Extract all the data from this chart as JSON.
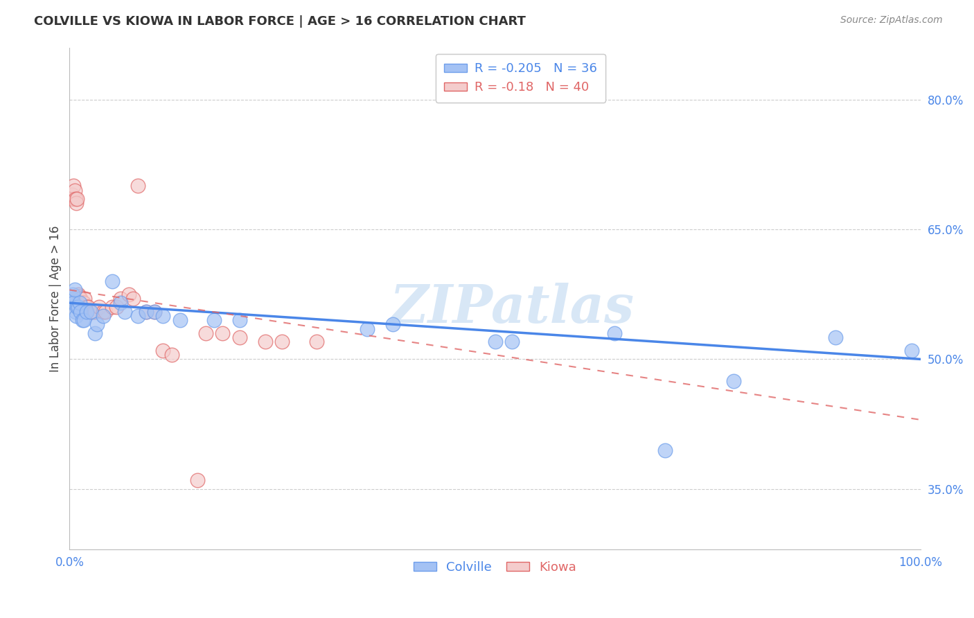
{
  "title": "COLVILLE VS KIOWA IN LABOR FORCE | AGE > 16 CORRELATION CHART",
  "source": "Source: ZipAtlas.com",
  "ylabel": "In Labor Force | Age > 16",
  "xlim": [
    0.0,
    1.0
  ],
  "ylim": [
    0.28,
    0.86
  ],
  "yticks": [
    0.35,
    0.5,
    0.65,
    0.8
  ],
  "ytick_labels": [
    "35.0%",
    "50.0%",
    "65.0%",
    "80.0%"
  ],
  "xticks": [
    0.0,
    0.2,
    0.4,
    0.6,
    0.8,
    1.0
  ],
  "xtick_labels": [
    "0.0%",
    "",
    "",
    "",
    "",
    "100.0%"
  ],
  "colville_R": -0.205,
  "colville_N": 36,
  "kiowa_R": -0.18,
  "kiowa_N": 40,
  "colville_color": "#a4c2f4",
  "kiowa_color": "#f4cccc",
  "colville_edge_color": "#6d9eeb",
  "kiowa_edge_color": "#e06666",
  "colville_line_color": "#4a86e8",
  "kiowa_line_color": "#e06666",
  "tick_color": "#4a86e8",
  "background_color": "#ffffff",
  "grid_color": "#cccccc",
  "colville_x": [
    0.003,
    0.004,
    0.005,
    0.006,
    0.007,
    0.008,
    0.009,
    0.01,
    0.012,
    0.013,
    0.015,
    0.017,
    0.02,
    0.025,
    0.03,
    0.032,
    0.04,
    0.05,
    0.06,
    0.065,
    0.08,
    0.09,
    0.1,
    0.11,
    0.13,
    0.17,
    0.2,
    0.35,
    0.38,
    0.5,
    0.52,
    0.64,
    0.7,
    0.78,
    0.9,
    0.99
  ],
  "colville_y": [
    0.57,
    0.575,
    0.565,
    0.58,
    0.555,
    0.55,
    0.56,
    0.56,
    0.565,
    0.555,
    0.545,
    0.545,
    0.555,
    0.555,
    0.53,
    0.54,
    0.55,
    0.59,
    0.565,
    0.555,
    0.55,
    0.555,
    0.555,
    0.55,
    0.545,
    0.545,
    0.545,
    0.535,
    0.54,
    0.52,
    0.52,
    0.53,
    0.395,
    0.475,
    0.525,
    0.51
  ],
  "kiowa_x": [
    0.003,
    0.004,
    0.005,
    0.006,
    0.007,
    0.008,
    0.009,
    0.01,
    0.011,
    0.012,
    0.013,
    0.015,
    0.016,
    0.017,
    0.018,
    0.02,
    0.022,
    0.025,
    0.028,
    0.03,
    0.035,
    0.04,
    0.042,
    0.05,
    0.055,
    0.06,
    0.07,
    0.075,
    0.08,
    0.09,
    0.1,
    0.11,
    0.12,
    0.15,
    0.16,
    0.18,
    0.2,
    0.23,
    0.25,
    0.29
  ],
  "kiowa_y": [
    0.69,
    0.685,
    0.7,
    0.695,
    0.685,
    0.68,
    0.685,
    0.575,
    0.572,
    0.57,
    0.57,
    0.565,
    0.565,
    0.565,
    0.57,
    0.56,
    0.56,
    0.555,
    0.555,
    0.555,
    0.56,
    0.555,
    0.555,
    0.56,
    0.56,
    0.57,
    0.575,
    0.57,
    0.7,
    0.555,
    0.555,
    0.51,
    0.505,
    0.36,
    0.53,
    0.53,
    0.525,
    0.52,
    0.52,
    0.52
  ],
  "colville_trendline_x": [
    0.0,
    1.0
  ],
  "colville_trendline_y": [
    0.565,
    0.5
  ],
  "kiowa_trendline_x": [
    0.0,
    1.0
  ],
  "kiowa_trendline_y": [
    0.58,
    0.43
  ],
  "watermark_text": "ZIPatlas",
  "watermark_color": "#b8d4f0",
  "figsize": [
    14.06,
    8.92
  ],
  "dpi": 100
}
